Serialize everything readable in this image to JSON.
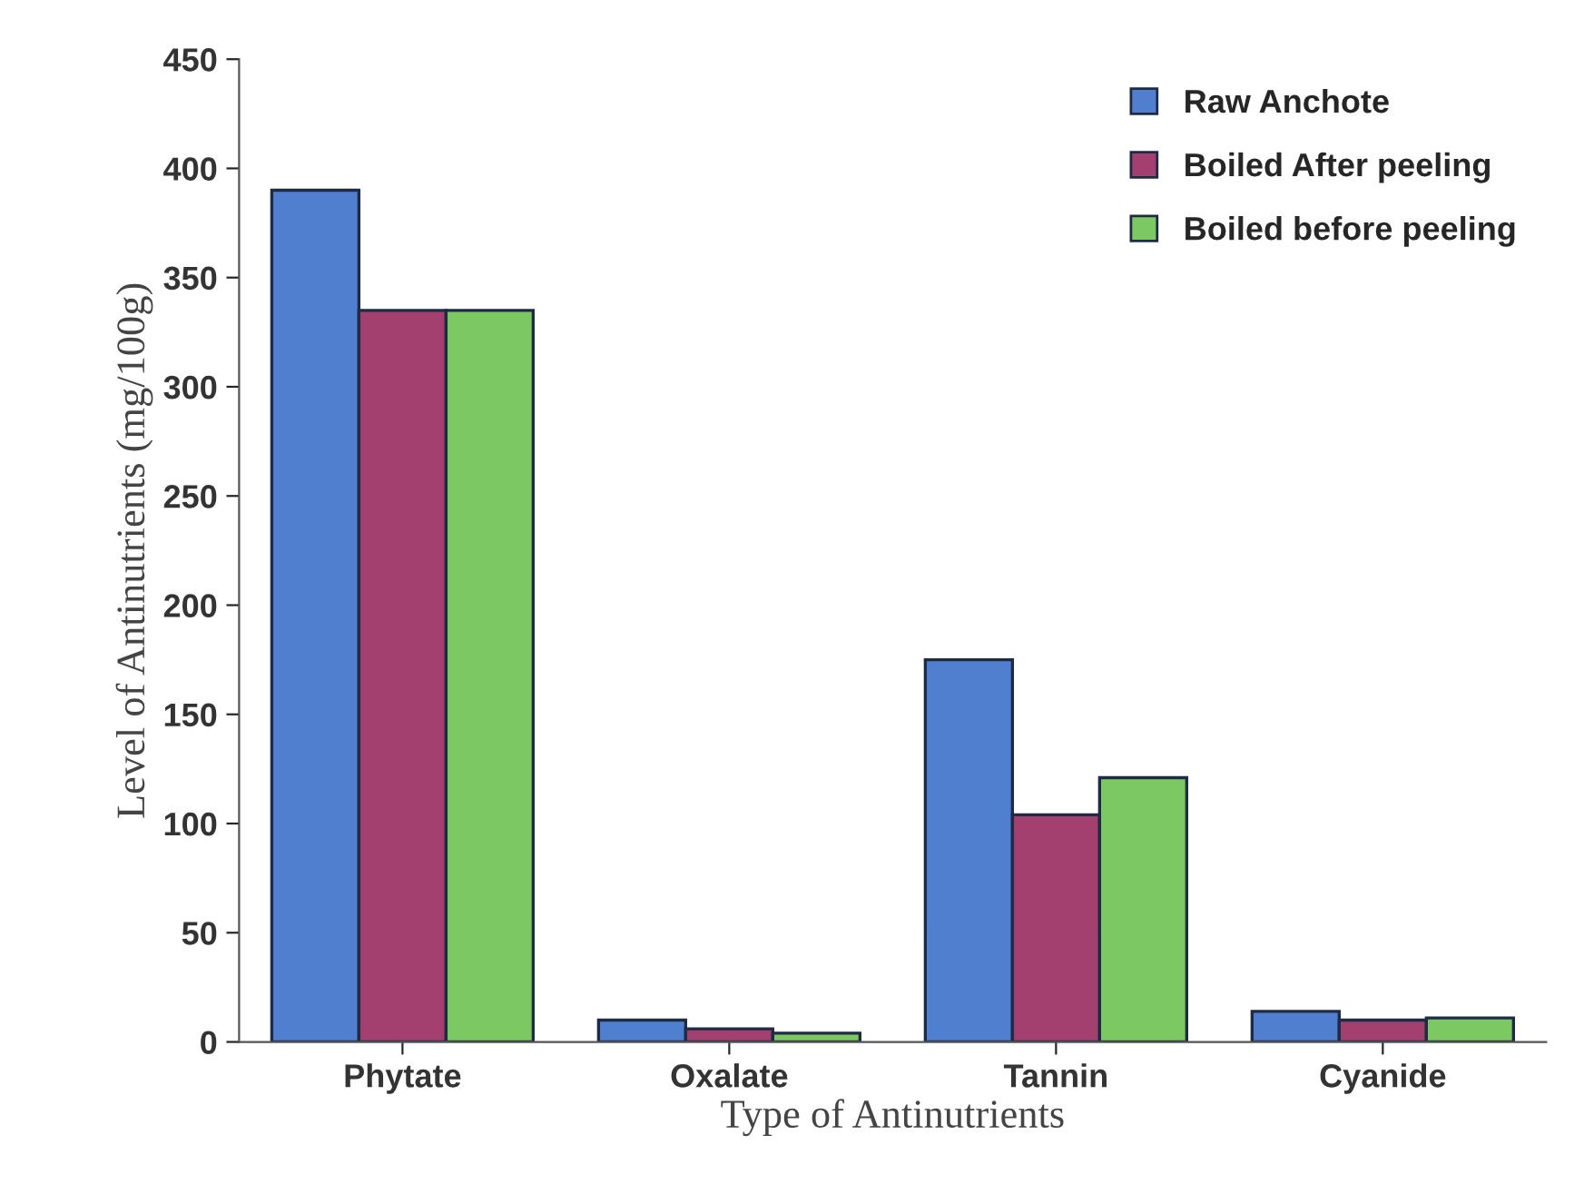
{
  "chart_data": {
    "type": "bar",
    "xlabel": "Type of Antinutrients",
    "ylabel": "Level of Antinutrients (mg/100g)",
    "categories": [
      "Phytate",
      "Oxalate",
      "Tannin",
      "Cyanide"
    ],
    "series": [
      {
        "name": "Raw Anchote",
        "color": "#4f7fce",
        "values": [
          390,
          10,
          175,
          14
        ]
      },
      {
        "name": "Boiled After peeling",
        "color": "#a3406f",
        "values": [
          335,
          6,
          104,
          10
        ]
      },
      {
        "name": "Boiled before peeling",
        "color": "#7cc862",
        "values": [
          335,
          4,
          121,
          11
        ]
      }
    ],
    "ylim": [
      0,
      450
    ],
    "yticks": [
      0,
      50,
      100,
      150,
      200,
      250,
      300,
      350,
      400,
      450
    ],
    "grid": false,
    "legend": "top right"
  }
}
